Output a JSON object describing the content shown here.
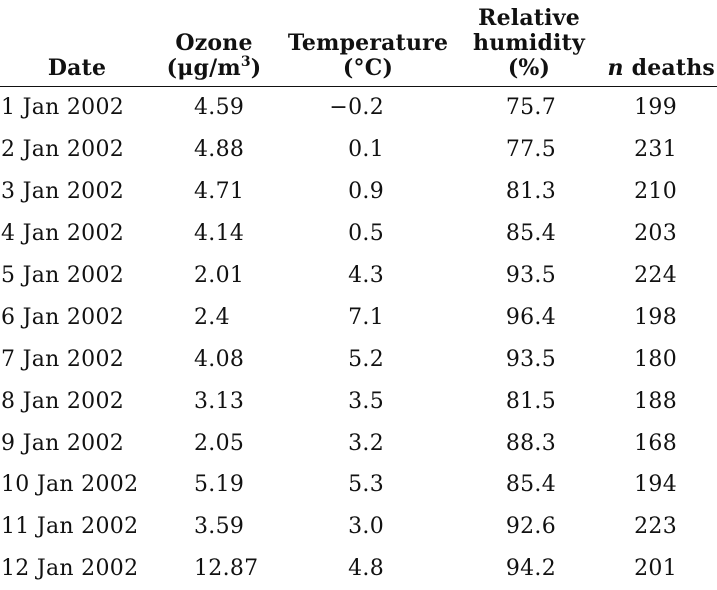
{
  "table": {
    "headers": {
      "date": "Date",
      "ozone": {
        "line1": "Ozone",
        "line2_prefix": "(μg/m",
        "line2_sup": "3",
        "line2_suffix": ")"
      },
      "temperature": {
        "line1": "Temperature",
        "line2": "(°C)"
      },
      "humidity": {
        "line1": "Relative",
        "line2": "humidity",
        "line3": "(%)"
      },
      "deaths": {
        "n": "n",
        "label": "deaths"
      }
    },
    "rows": [
      {
        "date": "1 Jan 2002",
        "ozone": "4.59",
        "temperature": "−0.2",
        "humidity": "75.7",
        "deaths": "199"
      },
      {
        "date": "2 Jan 2002",
        "ozone": "4.88",
        "temperature": "0.1",
        "humidity": "77.5",
        "deaths": "231"
      },
      {
        "date": "3 Jan 2002",
        "ozone": "4.71",
        "temperature": "0.9",
        "humidity": "81.3",
        "deaths": "210"
      },
      {
        "date": "4 Jan 2002",
        "ozone": "4.14",
        "temperature": "0.5",
        "humidity": "85.4",
        "deaths": "203"
      },
      {
        "date": "5 Jan 2002",
        "ozone": "2.01",
        "temperature": "4.3",
        "humidity": "93.5",
        "deaths": "224"
      },
      {
        "date": "6 Jan 2002",
        "ozone": "2.4",
        "temperature": "7.1",
        "humidity": "96.4",
        "deaths": "198"
      },
      {
        "date": "7 Jan 2002",
        "ozone": "4.08",
        "temperature": "5.2",
        "humidity": "93.5",
        "deaths": "180"
      },
      {
        "date": "8 Jan 2002",
        "ozone": "3.13",
        "temperature": "3.5",
        "humidity": "81.5",
        "deaths": "188"
      },
      {
        "date": "9 Jan 2002",
        "ozone": "2.05",
        "temperature": "3.2",
        "humidity": "88.3",
        "deaths": "168"
      },
      {
        "date": "10 Jan 2002",
        "ozone": "5.19",
        "temperature": "5.3",
        "humidity": "85.4",
        "deaths": "194"
      },
      {
        "date": "11 Jan 2002",
        "ozone": "3.59",
        "temperature": "3.0",
        "humidity": "92.6",
        "deaths": "223"
      },
      {
        "date": "12 Jan 2002",
        "ozone": "12.87",
        "temperature": "4.8",
        "humidity": "94.2",
        "deaths": "201"
      }
    ]
  }
}
